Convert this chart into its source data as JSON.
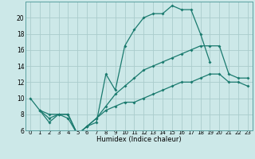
{
  "xlabel": "Humidex (Indice chaleur)",
  "background_color": "#cce8e8",
  "grid_color": "#aacccc",
  "line_color": "#1a7a6e",
  "xlim": [
    -0.5,
    23.5
  ],
  "ylim": [
    6,
    22
  ],
  "yticks": [
    6,
    8,
    10,
    12,
    14,
    16,
    18,
    20
  ],
  "xticks": [
    0,
    1,
    2,
    3,
    4,
    5,
    6,
    7,
    8,
    9,
    10,
    11,
    12,
    13,
    14,
    15,
    16,
    17,
    18,
    19,
    20,
    21,
    22,
    23
  ],
  "line1_x": [
    0,
    1,
    2,
    3,
    4,
    5,
    6,
    7,
    8,
    9,
    10,
    11,
    12,
    13,
    14,
    15,
    16,
    17,
    18,
    19
  ],
  "line1_y": [
    10,
    8.5,
    7,
    8,
    8,
    5.5,
    6.5,
    7,
    13,
    11,
    16.5,
    18.5,
    20,
    20.5,
    20.5,
    21.5,
    21,
    21,
    18,
    14.5
  ],
  "line2_x": [
    1,
    2,
    3,
    4,
    5,
    6,
    7,
    8,
    9,
    10,
    11,
    12,
    13,
    14,
    15,
    16,
    17,
    18,
    19,
    20,
    21,
    22,
    23
  ],
  "line2_y": [
    8.5,
    8.0,
    8,
    8,
    5.5,
    6.5,
    7.5,
    9,
    10.5,
    11.5,
    12.5,
    13.5,
    14,
    14.5,
    15,
    15.5,
    16,
    16.5,
    16.5,
    16.5,
    13,
    12.5,
    12.5
  ],
  "line3_x": [
    1,
    2,
    3,
    4,
    5,
    6,
    7,
    8,
    9,
    10,
    11,
    12,
    13,
    14,
    15,
    16,
    17,
    18,
    19,
    20,
    21,
    22,
    23
  ],
  "line3_y": [
    8.5,
    7.5,
    8,
    7.5,
    5.5,
    6.5,
    7.5,
    8.5,
    9,
    9.5,
    9.5,
    10,
    10.5,
    11,
    11.5,
    12,
    12,
    12.5,
    13,
    13,
    12,
    12,
    11.5
  ]
}
